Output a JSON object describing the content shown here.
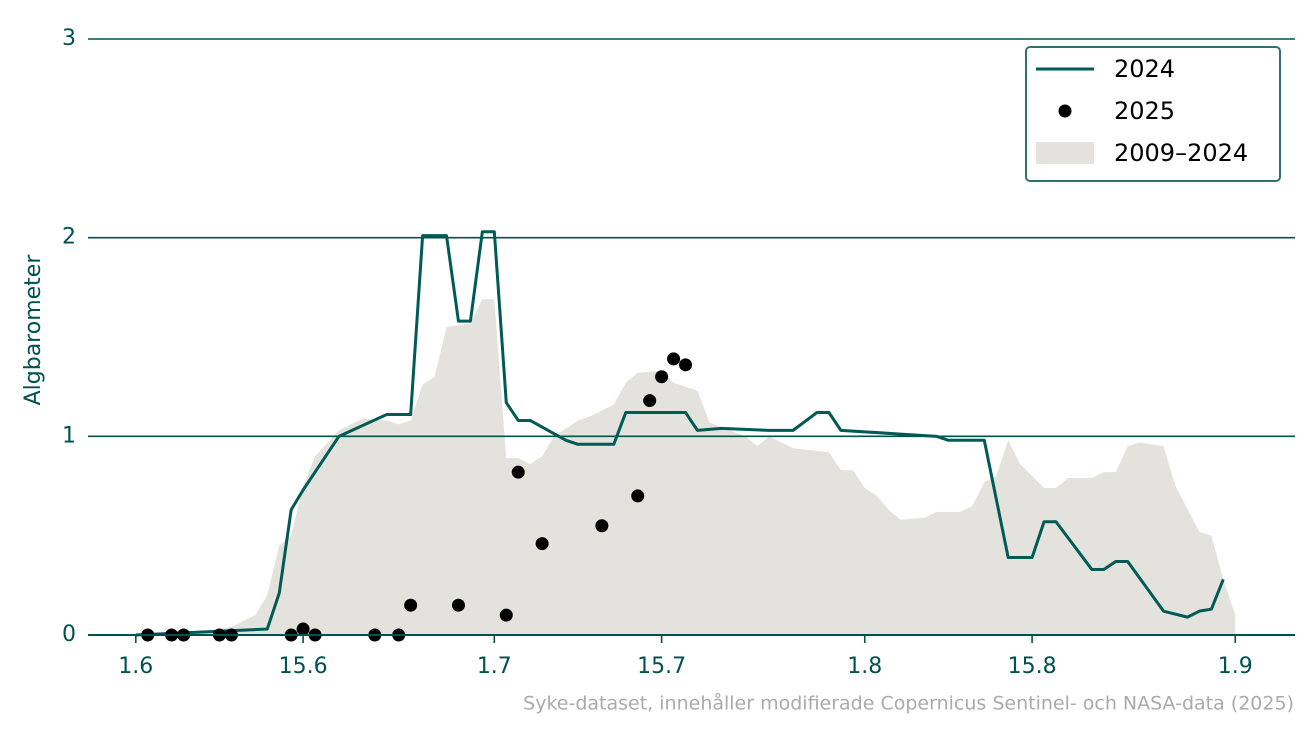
{
  "chart_data": {
    "type": "line",
    "y_label": "Algbarometer",
    "source": "Syke-dataset, innehåller modifierade Copernicus Sentinel- och NASA-data (2025)",
    "xlim": [
      "28.5",
      "6.9"
    ],
    "xticks": [
      "1.6",
      "15.6",
      "1.7",
      "15.7",
      "1.8",
      "15.8",
      "1.9"
    ],
    "ylim": [
      0,
      3
    ],
    "yticks": [
      0,
      1,
      2,
      3
    ],
    "grid": true,
    "legend": "upper right",
    "series": [
      {
        "name": "2024",
        "kind": "line",
        "color": "#005a55",
        "x": [
          "1.6",
          "12.6",
          "13.6",
          "14.6",
          "15.6",
          "18.6",
          "22.6",
          "24.6",
          "25.6",
          "27.6",
          "28.6",
          "29.6",
          "30.6",
          "1.7",
          "2.7",
          "3.7",
          "4.7",
          "7.7",
          "8.7",
          "11.7",
          "12.7",
          "17.7",
          "18.7",
          "20.7",
          "24.7",
          "26.7",
          "28.7",
          "29.7",
          "30.7",
          "7.8",
          "8.8",
          "11.8",
          "13.8",
          "15.8",
          "16.8",
          "17.8",
          "20.8",
          "21.8",
          "22.8",
          "23.8",
          "26.8",
          "28.8",
          "29.8",
          "30.8",
          "31.8"
        ],
        "values": [
          0,
          0.03,
          0.21,
          0.63,
          0.73,
          1.0,
          1.11,
          1.11,
          2.01,
          2.01,
          1.58,
          1.58,
          2.03,
          2.03,
          1.17,
          1.08,
          1.08,
          0.98,
          0.96,
          0.96,
          1.12,
          1.12,
          1.03,
          1.04,
          1.03,
          1.03,
          1.12,
          1.12,
          1.03,
          1.0,
          0.98,
          0.98,
          0.39,
          0.39,
          0.57,
          0.57,
          0.33,
          0.33,
          0.37,
          0.37,
          0.12,
          0.09,
          0.12,
          0.13,
          0.28
        ]
      },
      {
        "name": "2025",
        "kind": "scatter",
        "color": "#000000",
        "x": [
          "2.6",
          "4.6",
          "5.6",
          "8.6",
          "9.6",
          "14.6",
          "15.6",
          "16.6",
          "21.6",
          "23.6",
          "24.6",
          "28.6",
          "2.7",
          "3.7",
          "5.7",
          "10.7",
          "13.7",
          "14.7",
          "15.7",
          "16.7",
          "17.7"
        ],
        "values": [
          0,
          0,
          0,
          0,
          0,
          0,
          0.03,
          0,
          0,
          0,
          0.15,
          0.15,
          0.1,
          0.82,
          0.46,
          0.55,
          0.7,
          1.18,
          1.3,
          1.39,
          1.36
        ]
      },
      {
        "name": "2009–2024",
        "kind": "area",
        "color": "#e3e2dd",
        "x": [
          "1.6",
          "6.6",
          "9.6",
          "11.6",
          "12.6",
          "13.6",
          "14.6",
          "15.6",
          "16.6",
          "18.6",
          "20.6",
          "22.6",
          "23.6",
          "24.6",
          "25.6",
          "26.6",
          "27.6",
          "29.6",
          "30.6",
          "1.7",
          "2.7",
          "3.7",
          "4.7",
          "5.7",
          "6.7",
          "7.7",
          "8.7",
          "9.7",
          "11.7",
          "12.7",
          "13.7",
          "15.7",
          "16.7",
          "18.7",
          "19.7",
          "22.7",
          "23.7",
          "24.7",
          "26.7",
          "29.7",
          "30.7",
          "31.7",
          "1.8",
          "2.8",
          "3.8",
          "4.8",
          "6.8",
          "7.8",
          "9.8",
          "10.8",
          "11.8",
          "12.8",
          "13.8",
          "14.8",
          "15.8",
          "16.8",
          "17.8",
          "18.8",
          "20.8",
          "21.8",
          "22.8",
          "23.8",
          "24.8",
          "26.8",
          "27.8",
          "29.8",
          "30.8",
          "31.8",
          "1.9"
        ],
        "values": [
          0,
          0.01,
          0.04,
          0.1,
          0.2,
          0.45,
          0.5,
          0.75,
          0.9,
          1.03,
          1.09,
          1.08,
          1.06,
          1.08,
          1.26,
          1.3,
          1.55,
          1.57,
          1.69,
          1.69,
          0.89,
          0.89,
          0.86,
          0.9,
          1.0,
          1.04,
          1.08,
          1.1,
          1.16,
          1.27,
          1.32,
          1.33,
          1.27,
          1.23,
          1.07,
          1.0,
          0.95,
          1.0,
          0.94,
          0.92,
          0.83,
          0.83,
          0.74,
          0.7,
          0.63,
          0.58,
          0.59,
          0.62,
          0.62,
          0.65,
          0.77,
          0.8,
          0.98,
          0.86,
          0.8,
          0.74,
          0.74,
          0.79,
          0.79,
          0.82,
          0.82,
          0.95,
          0.97,
          0.95,
          0.75,
          0.52,
          0.5,
          0.28,
          0.1
        ]
      }
    ]
  }
}
